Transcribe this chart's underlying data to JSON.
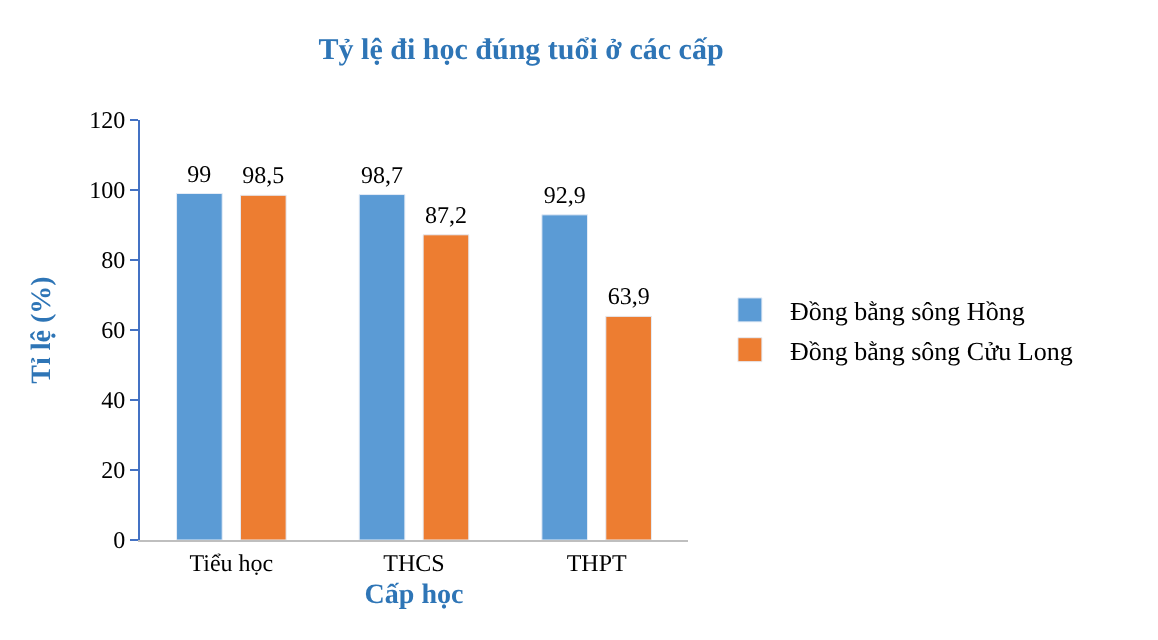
{
  "chart_data": {
    "type": "bar",
    "title": "Tỷ lệ đi học đúng tuổi ở các cấp",
    "xlabel": "Cấp học",
    "ylabel": "Tỉ lệ (%)",
    "categories": [
      "Tiểu học",
      "THCS",
      "THPT"
    ],
    "series": [
      {
        "name": "Đồng bằng sông Hồng",
        "color": "#5b9bd5",
        "values": [
          99,
          98.7,
          92.9
        ],
        "value_labels": [
          "99",
          "98,7",
          "92,9"
        ]
      },
      {
        "name": "Đồng bằng sông Cửu Long",
        "color": "#ed7d31",
        "values": [
          98.5,
          87.2,
          63.9
        ],
        "value_labels": [
          "98,5",
          "87,2",
          "63,9"
        ]
      }
    ],
    "ylim": [
      0,
      120
    ],
    "yticks": [
      0,
      20,
      40,
      60,
      80,
      100,
      120
    ],
    "legend": "right"
  }
}
